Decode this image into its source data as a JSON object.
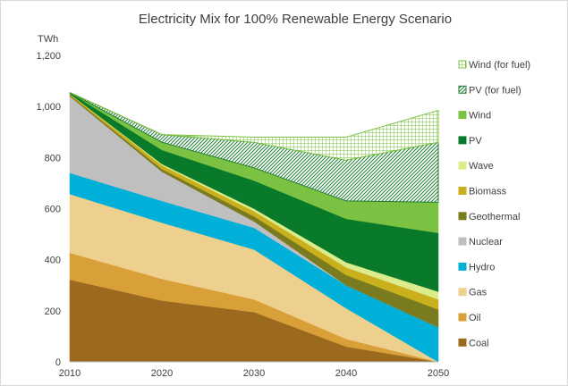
{
  "chart_data": {
    "type": "area",
    "title": "Electricity Mix for 100% Renewable Energy Scenario",
    "ylabel": "TWh",
    "xlabel": "",
    "x": [
      2010,
      2020,
      2030,
      2040,
      2050
    ],
    "x_tick_labels": [
      "2010",
      "2020",
      "2030",
      "2040",
      "2050"
    ],
    "ylim": [
      0,
      1200
    ],
    "y_ticks": [
      0,
      200,
      400,
      600,
      800,
      1000,
      1200
    ],
    "y_tick_labels": [
      "0",
      "200",
      "400",
      "600",
      "800",
      "1,000",
      "1,200"
    ],
    "stacked": true,
    "grid": false,
    "legend_position": "right",
    "series": [
      {
        "name": "Coal",
        "values": [
          322,
          240,
          195,
          60,
          0
        ],
        "color": "#9C6A1E",
        "pattern": "solid"
      },
      {
        "name": "Oil",
        "values": [
          105,
          85,
          50,
          30,
          0
        ],
        "color": "#D9A03A",
        "pattern": "solid"
      },
      {
        "name": "Gas",
        "values": [
          230,
          220,
          195,
          120,
          0
        ],
        "color": "#EED08E",
        "pattern": "solid"
      },
      {
        "name": "Hydro",
        "values": [
          83,
          85,
          85,
          90,
          135
        ],
        "color": "#00B0D8",
        "pattern": "solid"
      },
      {
        "name": "Nuclear",
        "values": [
          300,
          115,
          25,
          0,
          0
        ],
        "color": "#BFBFBF",
        "pattern": "solid"
      },
      {
        "name": "Geothermal",
        "values": [
          5,
          10,
          20,
          40,
          70
        ],
        "color": "#7A7A1E",
        "pattern": "solid"
      },
      {
        "name": "Biomass",
        "values": [
          5,
          15,
          20,
          30,
          40
        ],
        "color": "#C9B01C",
        "pattern": "solid"
      },
      {
        "name": "Wave",
        "values": [
          0,
          5,
          10,
          20,
          30
        ],
        "color": "#DCEB8C",
        "pattern": "solid"
      },
      {
        "name": "PV",
        "values": [
          5,
          55,
          110,
          170,
          230
        ],
        "color": "#087A2A",
        "pattern": "solid"
      },
      {
        "name": "Wind",
        "values": [
          0,
          30,
          50,
          70,
          120
        ],
        "color": "#7CC242",
        "pattern": "solid"
      },
      {
        "name": "PV (for fuel)",
        "values": [
          0,
          30,
          100,
          160,
          235
        ],
        "color": "#1E7E34",
        "pattern": "diagonal"
      },
      {
        "name": "Wind (for fuel)",
        "values": [
          0,
          0,
          20,
          90,
          125
        ],
        "color": "#7CC242",
        "pattern": "grid"
      }
    ]
  }
}
